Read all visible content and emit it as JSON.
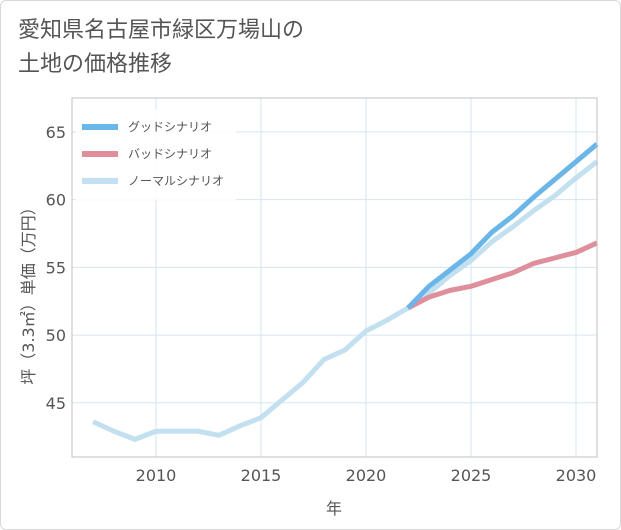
{
  "title_lines": [
    "愛知県名古屋市緑区万場山の",
    "土地の価格推移"
  ],
  "chart_data": {
    "type": "line",
    "title": "愛知県名古屋市緑区万場山の土地の価格推移",
    "xlabel": "年",
    "ylabel": "坪（3.3㎡）単価（万円）",
    "xlim": [
      2006,
      2031
    ],
    "ylim": [
      41,
      67.5
    ],
    "xticks": [
      2010,
      2015,
      2020,
      2025,
      2030
    ],
    "yticks": [
      45,
      50,
      55,
      60,
      65
    ],
    "grid": true,
    "legend_position": "top-left",
    "series": [
      {
        "name": "グッドシナリオ",
        "color": "#6bb6e8",
        "x": [
          2022,
          2023,
          2024,
          2025,
          2026,
          2027,
          2028,
          2029,
          2030,
          2031
        ],
        "values": [
          52.0,
          53.6,
          54.8,
          56.0,
          57.6,
          58.8,
          60.2,
          61.5,
          62.8,
          64.1
        ]
      },
      {
        "name": "バッドシナリオ",
        "color": "#de8f9b",
        "x": [
          2022,
          2023,
          2024,
          2025,
          2026,
          2027,
          2028,
          2029,
          2030,
          2031
        ],
        "values": [
          52.0,
          52.8,
          53.3,
          53.6,
          54.1,
          54.6,
          55.3,
          55.7,
          56.1,
          56.8
        ]
      },
      {
        "name": "ノーマルシナリオ",
        "color": "#c2e0f0",
        "x": [
          2007,
          2008,
          2009,
          2010,
          2011,
          2012,
          2013,
          2014,
          2015,
          2016,
          2017,
          2018,
          2019,
          2020,
          2021,
          2022,
          2023,
          2024,
          2025,
          2026,
          2027,
          2028,
          2029,
          2030,
          2031
        ],
        "values": [
          43.6,
          42.9,
          42.3,
          42.9,
          42.9,
          42.9,
          42.6,
          43.3,
          43.9,
          45.2,
          46.5,
          48.2,
          48.9,
          50.3,
          51.1,
          52.0,
          53.1,
          54.4,
          55.5,
          56.9,
          58.0,
          59.2,
          60.3,
          61.6,
          62.8
        ]
      }
    ]
  }
}
